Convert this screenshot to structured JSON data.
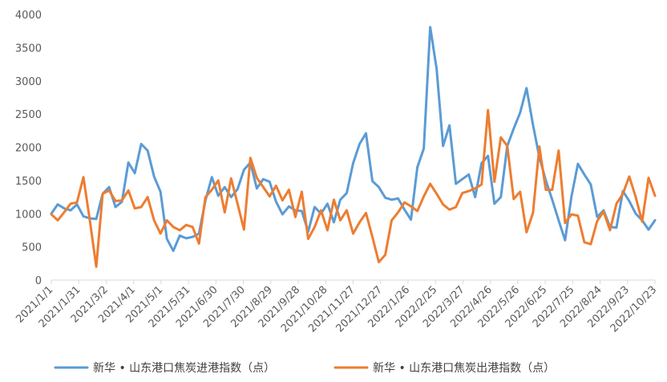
{
  "chart_data": {
    "type": "line",
    "title": "",
    "xlabel": "",
    "ylabel": "",
    "ylim": [
      0,
      4000
    ],
    "yticks": [
      0,
      500,
      1000,
      1500,
      2000,
      2500,
      3000,
      3500,
      4000
    ],
    "grid": false,
    "legend_position": "bottom",
    "x_tick_labels": [
      "2021/1/1",
      "2021/1/31",
      "2021/3/2",
      "2021/4/1",
      "2021/5/1",
      "2021/5/31",
      "2021/6/30",
      "2021/7/30",
      "2021/8/29",
      "2021/9/28",
      "2021/10/28",
      "2021/11/27",
      "2021/12/27",
      "2022/1/26",
      "2022/2/25",
      "2022/3/27",
      "2022/4/26",
      "2022/5/26",
      "2022/6/25",
      "2022/7/25",
      "2022/8/24",
      "2022/9/23",
      "2022/10/23"
    ],
    "series": [
      {
        "name": "新华 • 山东港口焦炭进港指数（点）",
        "color": "#5B9BD5",
        "values": [
          1000,
          1140,
          1080,
          1050,
          1140,
          960,
          930,
          920,
          1300,
          1400,
          1100,
          1180,
          1770,
          1610,
          2050,
          1950,
          1560,
          1330,
          620,
          440,
          670,
          630,
          650,
          700,
          1200,
          1550,
          1270,
          1400,
          1250,
          1370,
          1660,
          1770,
          1380,
          1520,
          1480,
          1180,
          990,
          1110,
          1050,
          1040,
          730,
          1100,
          1000,
          1150,
          870,
          1210,
          1310,
          1760,
          2050,
          2210,
          1490,
          1400,
          1240,
          1210,
          1230,
          1060,
          910,
          1700,
          1980,
          3810,
          3180,
          2020,
          2330,
          1450,
          1520,
          1590,
          1250,
          1760,
          1870,
          1150,
          1250,
          2020,
          2280,
          2520,
          2890,
          2340,
          1850,
          1500,
          1210,
          900,
          600,
          1260,
          1750,
          1590,
          1440,
          950,
          1050,
          800,
          790,
          1340,
          1190,
          1000,
          900,
          760,
          900
        ]
      },
      {
        "name": "新华 • 山东港口焦炭出港指数（点）",
        "color": "#ED7D31",
        "values": [
          990,
          900,
          1020,
          1150,
          1170,
          1550,
          900,
          200,
          1300,
          1350,
          1190,
          1200,
          1350,
          1080,
          1100,
          1250,
          900,
          700,
          900,
          800,
          750,
          830,
          800,
          550,
          1250,
          1360,
          1500,
          1020,
          1530,
          1150,
          760,
          1840,
          1540,
          1400,
          1260,
          1420,
          1200,
          1360,
          950,
          1330,
          620,
          800,
          1050,
          750,
          1210,
          900,
          1050,
          700,
          870,
          1010,
          650,
          270,
          380,
          900,
          1020,
          1170,
          1110,
          1040,
          1260,
          1450,
          1300,
          1140,
          1060,
          1100,
          1310,
          1340,
          1380,
          1440,
          2560,
          1480,
          2150,
          2020,
          1220,
          1330,
          720,
          1010,
          2010,
          1360,
          1360,
          1950,
          860,
          990,
          970,
          570,
          540,
          890,
          1030,
          750,
          1150,
          1300,
          1560,
          1250,
          880,
          1540,
          1270
        ]
      }
    ]
  }
}
